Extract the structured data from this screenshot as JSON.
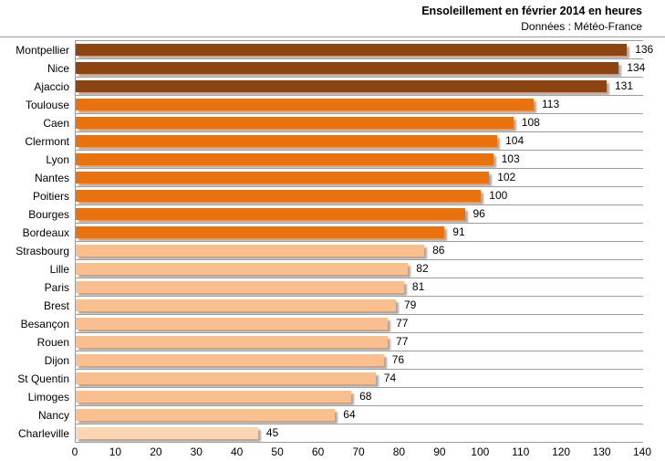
{
  "header": {
    "title": "Ensoleillement en février 2014 en heures",
    "subtitle": "Données : Météo-France"
  },
  "chart_data": {
    "type": "bar",
    "orientation": "horizontal",
    "title": "Ensoleillement en février 2014 en heures",
    "subtitle": "Données : Météo-France",
    "xlabel": "",
    "ylabel": "",
    "xlim": [
      0,
      140
    ],
    "x_ticks": [
      0,
      10,
      20,
      30,
      40,
      50,
      60,
      70,
      80,
      90,
      100,
      110,
      120,
      130,
      140
    ],
    "grid": "category-row-separators",
    "value_labels": "end-of-bar",
    "legend": "none",
    "bars": [
      {
        "label": "Montpellier",
        "value": 136,
        "color": "#8B4513"
      },
      {
        "label": "Nice",
        "value": 134,
        "color": "#8B4513"
      },
      {
        "label": "Ajaccio",
        "value": 131,
        "color": "#8B4513"
      },
      {
        "label": "Toulouse",
        "value": 113,
        "color": "#E8720D"
      },
      {
        "label": "Caen",
        "value": 108,
        "color": "#E8720D"
      },
      {
        "label": "Clermont",
        "value": 104,
        "color": "#E8720D"
      },
      {
        "label": "Lyon",
        "value": 103,
        "color": "#E8720D"
      },
      {
        "label": "Nantes",
        "value": 102,
        "color": "#E8720D"
      },
      {
        "label": "Poitiers",
        "value": 100,
        "color": "#E8720D"
      },
      {
        "label": "Bourges",
        "value": 96,
        "color": "#E8720D"
      },
      {
        "label": "Bordeaux",
        "value": 91,
        "color": "#E8720D"
      },
      {
        "label": "Strasbourg",
        "value": 86,
        "color": "#FABF8F"
      },
      {
        "label": "Lille",
        "value": 82,
        "color": "#FABF8F"
      },
      {
        "label": "Paris",
        "value": 81,
        "color": "#FABF8F"
      },
      {
        "label": "Brest",
        "value": 79,
        "color": "#FABF8F"
      },
      {
        "label": "Besançon",
        "value": 77,
        "color": "#FABF8F"
      },
      {
        "label": "Rouen",
        "value": 77,
        "color": "#FABF8F"
      },
      {
        "label": "Dijon",
        "value": 76,
        "color": "#FABF8F"
      },
      {
        "label": "St Quentin",
        "value": 74,
        "color": "#FABF8F"
      },
      {
        "label": "Limoges",
        "value": 68,
        "color": "#FABF8F"
      },
      {
        "label": "Nancy",
        "value": 64,
        "color": "#FABF8F"
      },
      {
        "label": "Charleville",
        "value": 45,
        "color": "#FCD5B4"
      }
    ],
    "colors": {
      "dark_brown": "#8B4513",
      "orange": "#E8720D",
      "light_peach": "#FABF8F",
      "pale_peach": "#FCD5B4",
      "gridline": "#9B9B9B",
      "bar_shadow": "#A9A9A9",
      "text": "#000000",
      "background": "#FFFFFF"
    }
  }
}
